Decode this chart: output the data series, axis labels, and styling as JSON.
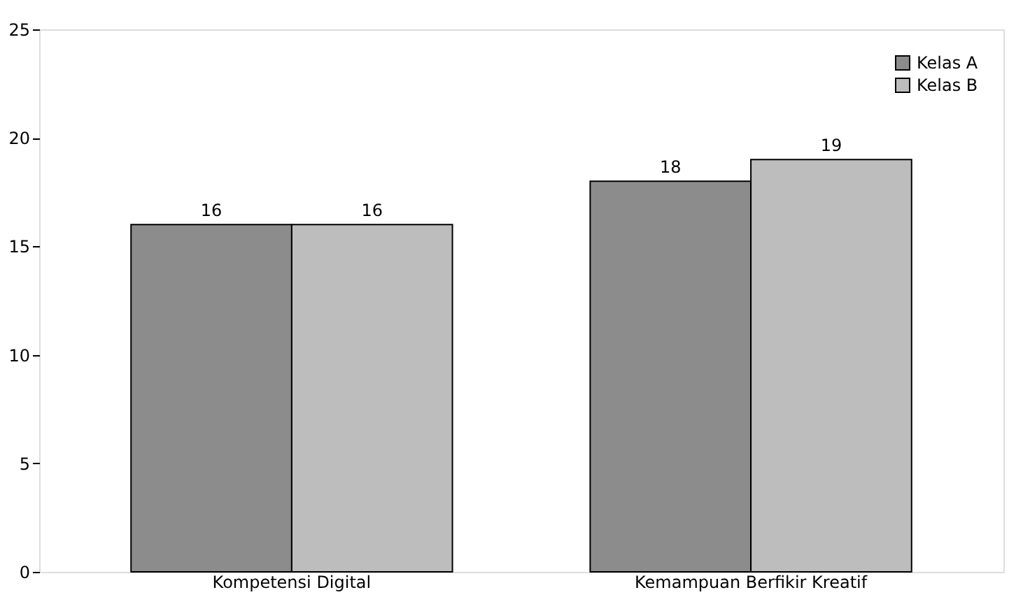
{
  "chart_data": {
    "type": "bar",
    "categories": [
      "Kompetensi Digital",
      "Kemampuan Berfikir Kreatif"
    ],
    "series": [
      {
        "name": "Kelas A",
        "color": "#8c8c8c",
        "values": [
          16,
          18
        ]
      },
      {
        "name": "Kelas B",
        "color": "#bdbdbd",
        "values": [
          16,
          19
        ]
      }
    ],
    "ylim": [
      0,
      25
    ],
    "yticks": [
      0,
      5,
      10,
      15,
      20,
      25
    ],
    "grid": false,
    "legend": "top right",
    "data_labels": true
  }
}
